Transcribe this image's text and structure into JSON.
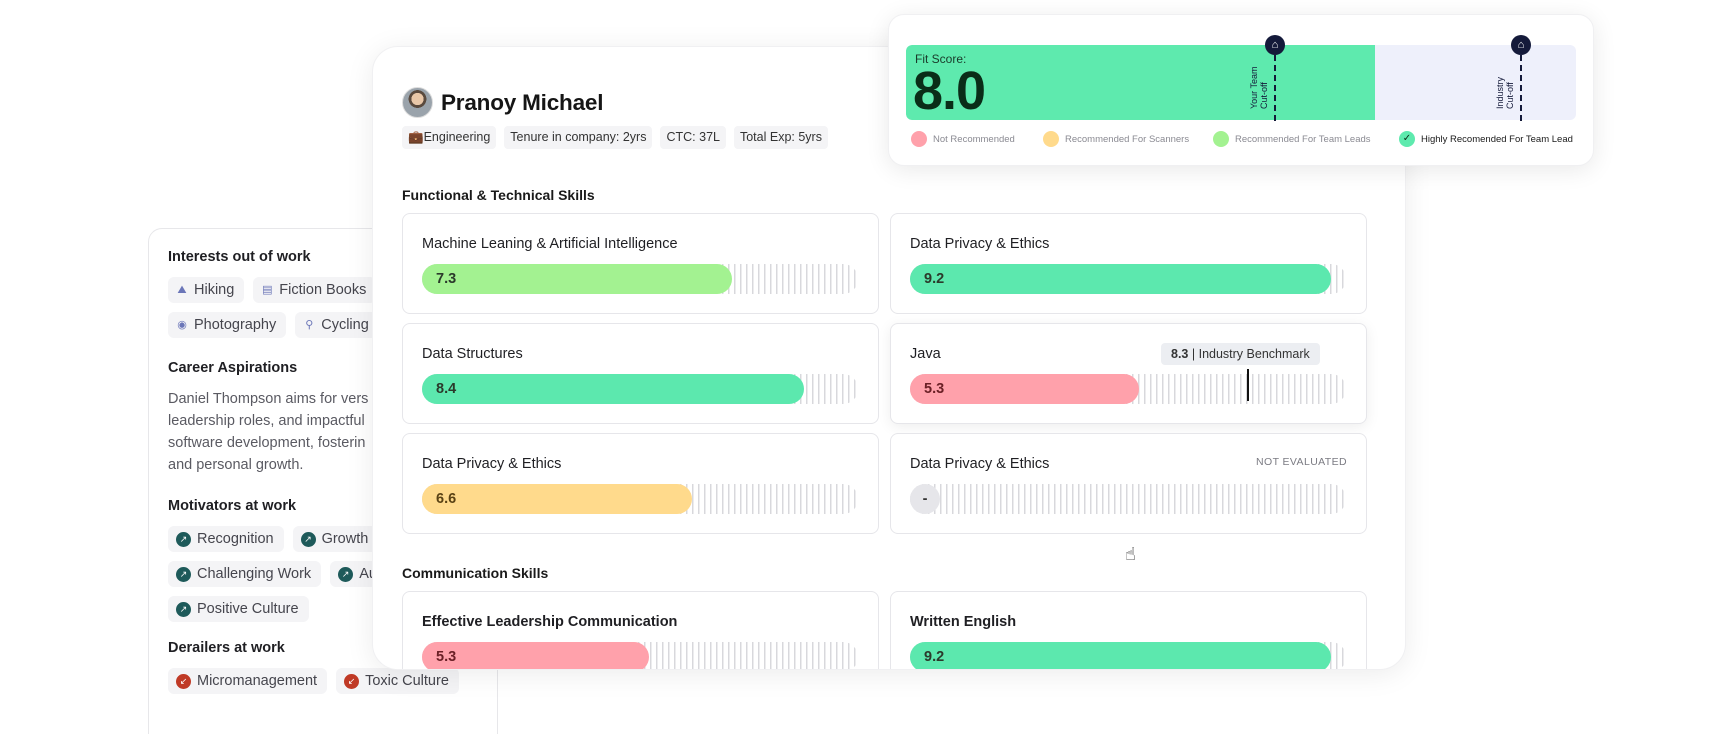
{
  "side_panel": {
    "interests_title": "Interests out of work",
    "interests": [
      {
        "label": "Hiking",
        "icon": "hiking-icon"
      },
      {
        "label": "Fiction Books",
        "icon": "books-icon"
      },
      {
        "label": "Photography",
        "icon": "camera-icon"
      },
      {
        "label": "Cycling",
        "icon": "cycling-icon"
      }
    ],
    "aspirations_title": "Career Aspirations",
    "aspirations_lines": [
      "Daniel Thompson aims for vers",
      "leadership roles, and impactful",
      "software development, fosterin",
      "and personal growth."
    ],
    "motivators_title": "Motivators at work",
    "motivators": [
      "Recognition",
      "Growth",
      "Challenging Work",
      "Au",
      "Positive Culture"
    ],
    "derailers_title": "Derailers at work",
    "derailers": [
      "Micromanagement",
      "Toxic Culture"
    ]
  },
  "profile": {
    "name": "Pranoy Michael",
    "department": "Engineering",
    "tenure": "Tenure in company: 2yrs",
    "ctc": "CTC: 37L",
    "total_exp": "Total Exp: 5yrs"
  },
  "functional_title": "Functional & Technical Skills",
  "functional_skills": [
    {
      "name": "Machine Leaning & Artificial Intelligence",
      "score": "7.3",
      "fill": 0.71,
      "color": "lime"
    },
    {
      "name": "Data Privacy & Ethics",
      "score": "9.2",
      "fill": 0.965,
      "color": "green"
    },
    {
      "name": "Data Structures",
      "score": "8.4",
      "fill": 0.875,
      "color": "green"
    },
    {
      "name": "Java",
      "score": "5.3",
      "fill": 0.525,
      "color": "red",
      "benchmark_value": "8.3",
      "benchmark_label": "Industry Benchmark"
    },
    {
      "name": "Data Privacy & Ethics",
      "score": "6.6",
      "fill": 0.62,
      "color": "amber"
    },
    {
      "name": "Data Privacy & Ethics",
      "score": "-",
      "status": "NOT EVALUATED"
    }
  ],
  "communication_title": "Communication Skills",
  "communication_skills": [
    {
      "name": "Effective Leadership Communication",
      "score": "5.3",
      "fill": 0.52,
      "color": "red"
    },
    {
      "name": "Written English",
      "score": "9.2",
      "fill": 0.965,
      "color": "green"
    }
  ],
  "fit": {
    "label": "Fit Score:",
    "value": "8.0",
    "fill": 0.7,
    "team_cutoff_label": "Your Team\nCut-off",
    "industry_cutoff_label": "Industry\nCut-off",
    "legend": [
      {
        "label": "Not Recommended",
        "color": "#ffa1ab"
      },
      {
        "label": "Recommended For Scanners",
        "color": "#ffda8c"
      },
      {
        "label": "Recommended For Team Leads",
        "color": "#a3f291"
      },
      {
        "label": "Highly Recomended For Team Lead",
        "color": "#5eeaae",
        "active": true
      }
    ]
  }
}
